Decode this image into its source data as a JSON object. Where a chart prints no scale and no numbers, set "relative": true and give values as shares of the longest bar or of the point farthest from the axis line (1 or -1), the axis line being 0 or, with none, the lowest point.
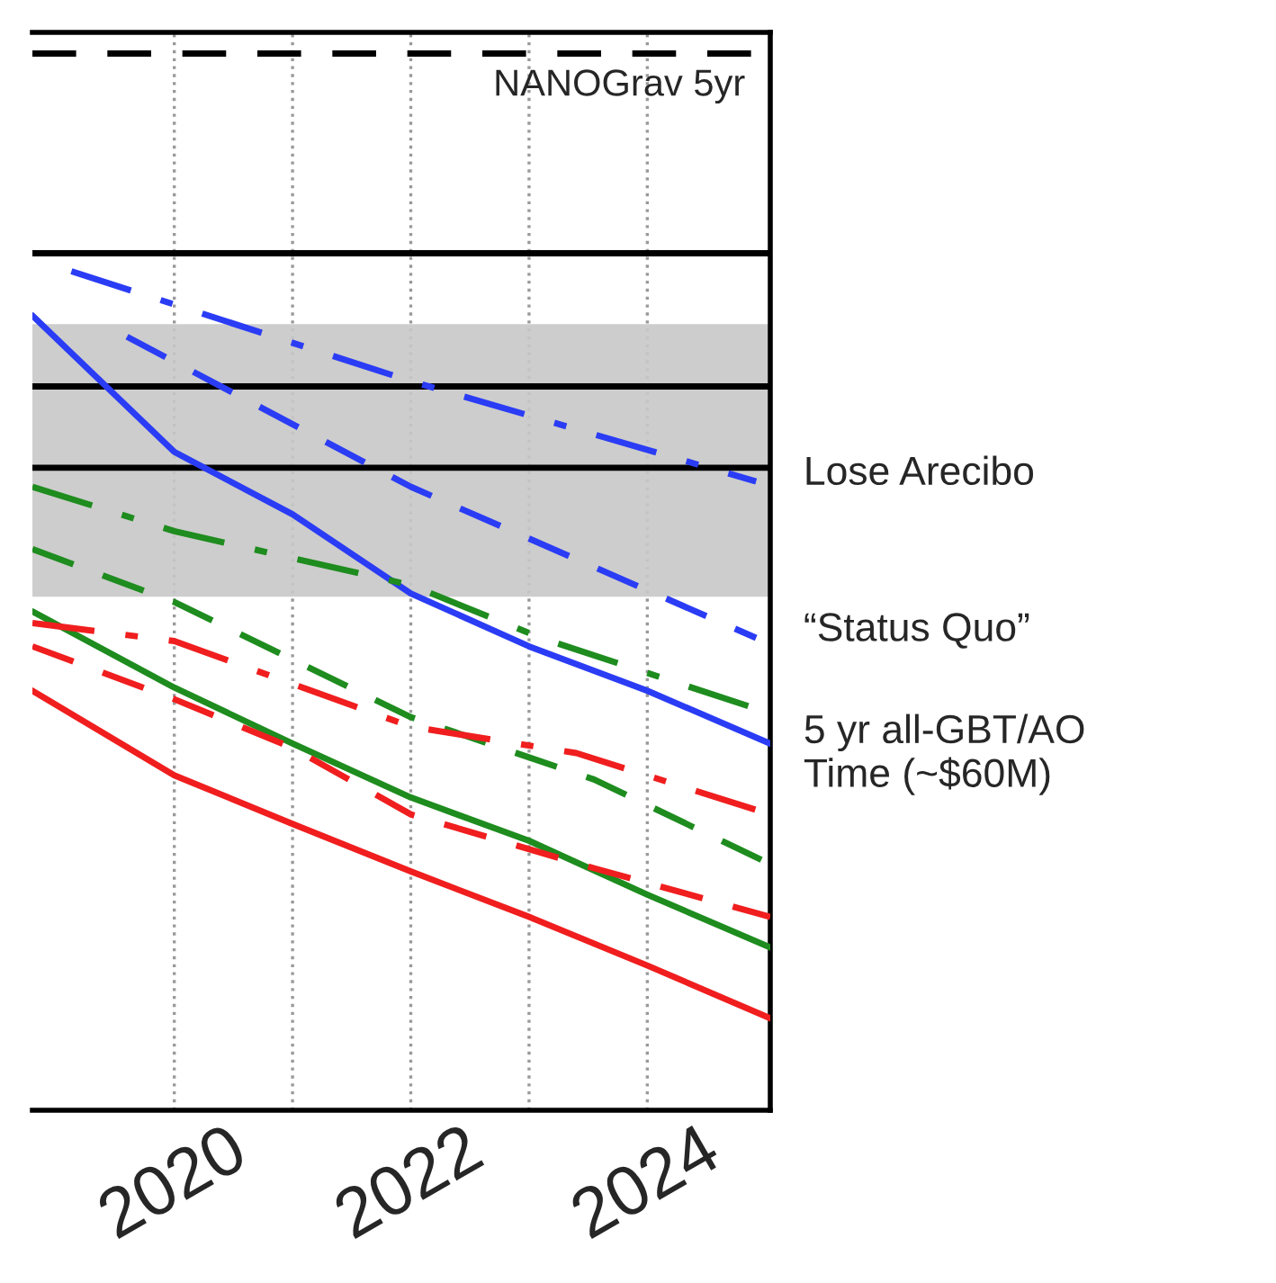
{
  "chart_data": {
    "type": "line",
    "relative": true,
    "xlim": [
      2018.8,
      2025.04
    ],
    "xticks": [
      2020,
      {
        "value": 2021,
        "label": null
      },
      2022,
      {
        "value": 2023,
        "label": null
      },
      2024
    ],
    "grid": "x",
    "series": [
      {
        "name": "NANOGrav 5yr",
        "color": "#000000",
        "line_style": "dashed",
        "x": [
          2018.8,
          2025.04
        ],
        "values": [
          1.0,
          1.0
        ]
      },
      {
        "color": "#000000",
        "line_style": "solid",
        "x": [
          2018.8,
          2025.04
        ],
        "values": [
          0.811,
          0.811
        ]
      },
      {
        "color": "#000000",
        "line_style": "solid",
        "x": [
          2018.8,
          2025.04
        ],
        "values": [
          0.685,
          0.685
        ]
      },
      {
        "color": "#000000",
        "line_style": "solid",
        "x": [
          2018.8,
          2025.04
        ],
        "values": [
          0.608,
          0.608
        ]
      },
      {
        "color": "#2b3cf5",
        "line_style": "dashdot",
        "x": [
          2019.13,
          2022.0,
          2024.92
        ],
        "values": [
          0.794,
          0.69,
          0.595
        ]
      },
      {
        "color": "#2b3cf5",
        "line_style": "dashed",
        "x": [
          2019.6,
          2022.0,
          2024.92
        ],
        "values": [
          0.732,
          0.59,
          0.447
        ]
      },
      {
        "color": "#2b3cf5",
        "line_style": "solid",
        "x": [
          2018.8,
          2020.0,
          2021.0,
          2022.0,
          2023.0,
          2024.0,
          2025.04
        ],
        "values": [
          0.752,
          0.623,
          0.564,
          0.489,
          0.439,
          0.397,
          0.347
        ]
      },
      {
        "color": "#1e8c1e",
        "line_style": "dashdot",
        "x": [
          2018.8,
          2020.0,
          2022.0,
          2023.1,
          2024.92
        ],
        "values": [
          0.59,
          0.548,
          0.497,
          0.447,
          0.38
        ]
      },
      {
        "color": "#1e8c1e",
        "line_style": "dashed",
        "x": [
          2018.8,
          2020.0,
          2022.0,
          2023.55,
          2025.04
        ],
        "values": [
          0.531,
          0.481,
          0.372,
          0.313,
          0.233
        ]
      },
      {
        "color": "#1e8c1e",
        "line_style": "solid",
        "x": [
          2018.8,
          2020.0,
          2021.0,
          2022.0,
          2023.0,
          2024.0,
          2025.04
        ],
        "values": [
          0.472,
          0.4,
          0.347,
          0.296,
          0.255,
          0.204,
          0.154
        ]
      },
      {
        "color": "#f01e1e",
        "line_style": "dashdot",
        "x": [
          2018.8,
          2020.0,
          2022.0,
          2023.4,
          2025.04
        ],
        "values": [
          0.461,
          0.444,
          0.363,
          0.338,
          0.28
        ]
      },
      {
        "color": "#f01e1e",
        "line_style": "dashed",
        "x": [
          2018.8,
          2020.0,
          2021.0,
          2022.0,
          2023.55,
          2025.04
        ],
        "values": [
          0.439,
          0.389,
          0.343,
          0.28,
          0.229,
          0.183
        ]
      },
      {
        "color": "#f01e1e",
        "line_style": "solid",
        "x": [
          2018.8,
          2020.0,
          2021.0,
          2022.0,
          2023.0,
          2024.0,
          2025.04
        ],
        "values": [
          0.397,
          0.317,
          0.271,
          0.226,
          0.183,
          0.137,
          0.087
        ]
      }
    ],
    "bands": [
      {
        "axis": "y",
        "from": 0.486,
        "to": 0.744,
        "color": "#c8c8c8"
      }
    ],
    "annotations": [
      "Lose Arecibo",
      "“Status Quo”",
      "5 yr all-GBT/AO\nTime (~$60M)"
    ]
  }
}
